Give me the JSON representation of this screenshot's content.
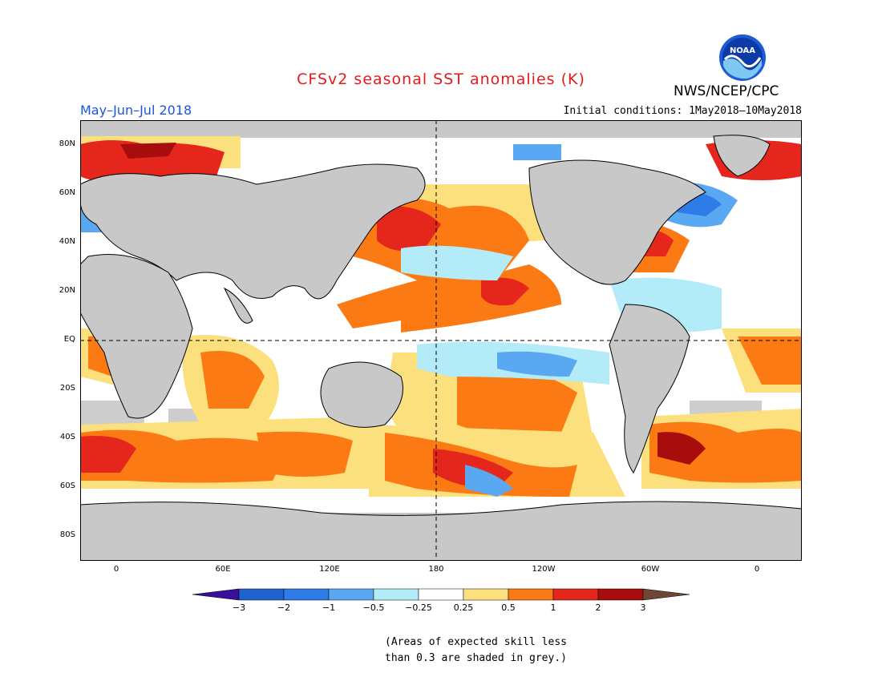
{
  "header": {
    "title": "CFSv2 seasonal SST anomalies (K)",
    "period": "May–Jun–Jul 2018",
    "initial_conditions": "Initial conditions: 1May2018–10May2018",
    "agency": "NWS/NCEP/CPC",
    "logo_text": "NOAA"
  },
  "map": {
    "lat_labels": [
      "80N",
      "60N",
      "40N",
      "20N",
      "EQ",
      "20S",
      "40S",
      "60S",
      "80S"
    ],
    "lon_labels": [
      "0",
      "60E",
      "120E",
      "180",
      "120W",
      "60W",
      "0"
    ],
    "land_color": "#c8c8c8",
    "ocean_color": "#ffffff"
  },
  "colorbar": {
    "tick_labels": [
      "−3",
      "−2",
      "−1",
      "−0.5",
      "−0.25",
      "0.25",
      "0.5",
      "1",
      "2",
      "3"
    ],
    "colors": [
      "#3a0f9a",
      "#1f62cc",
      "#2e7ce8",
      "#5ba8f2",
      "#b3ecf8",
      "#ffffff",
      "#fbe07d",
      "#fb7a13",
      "#e5261c",
      "#a80d0d",
      "#6e4636"
    ]
  },
  "footnote": {
    "line1": "(Areas of expected skill less",
    "line2": "than 0.3 are shaded in grey.)"
  }
}
